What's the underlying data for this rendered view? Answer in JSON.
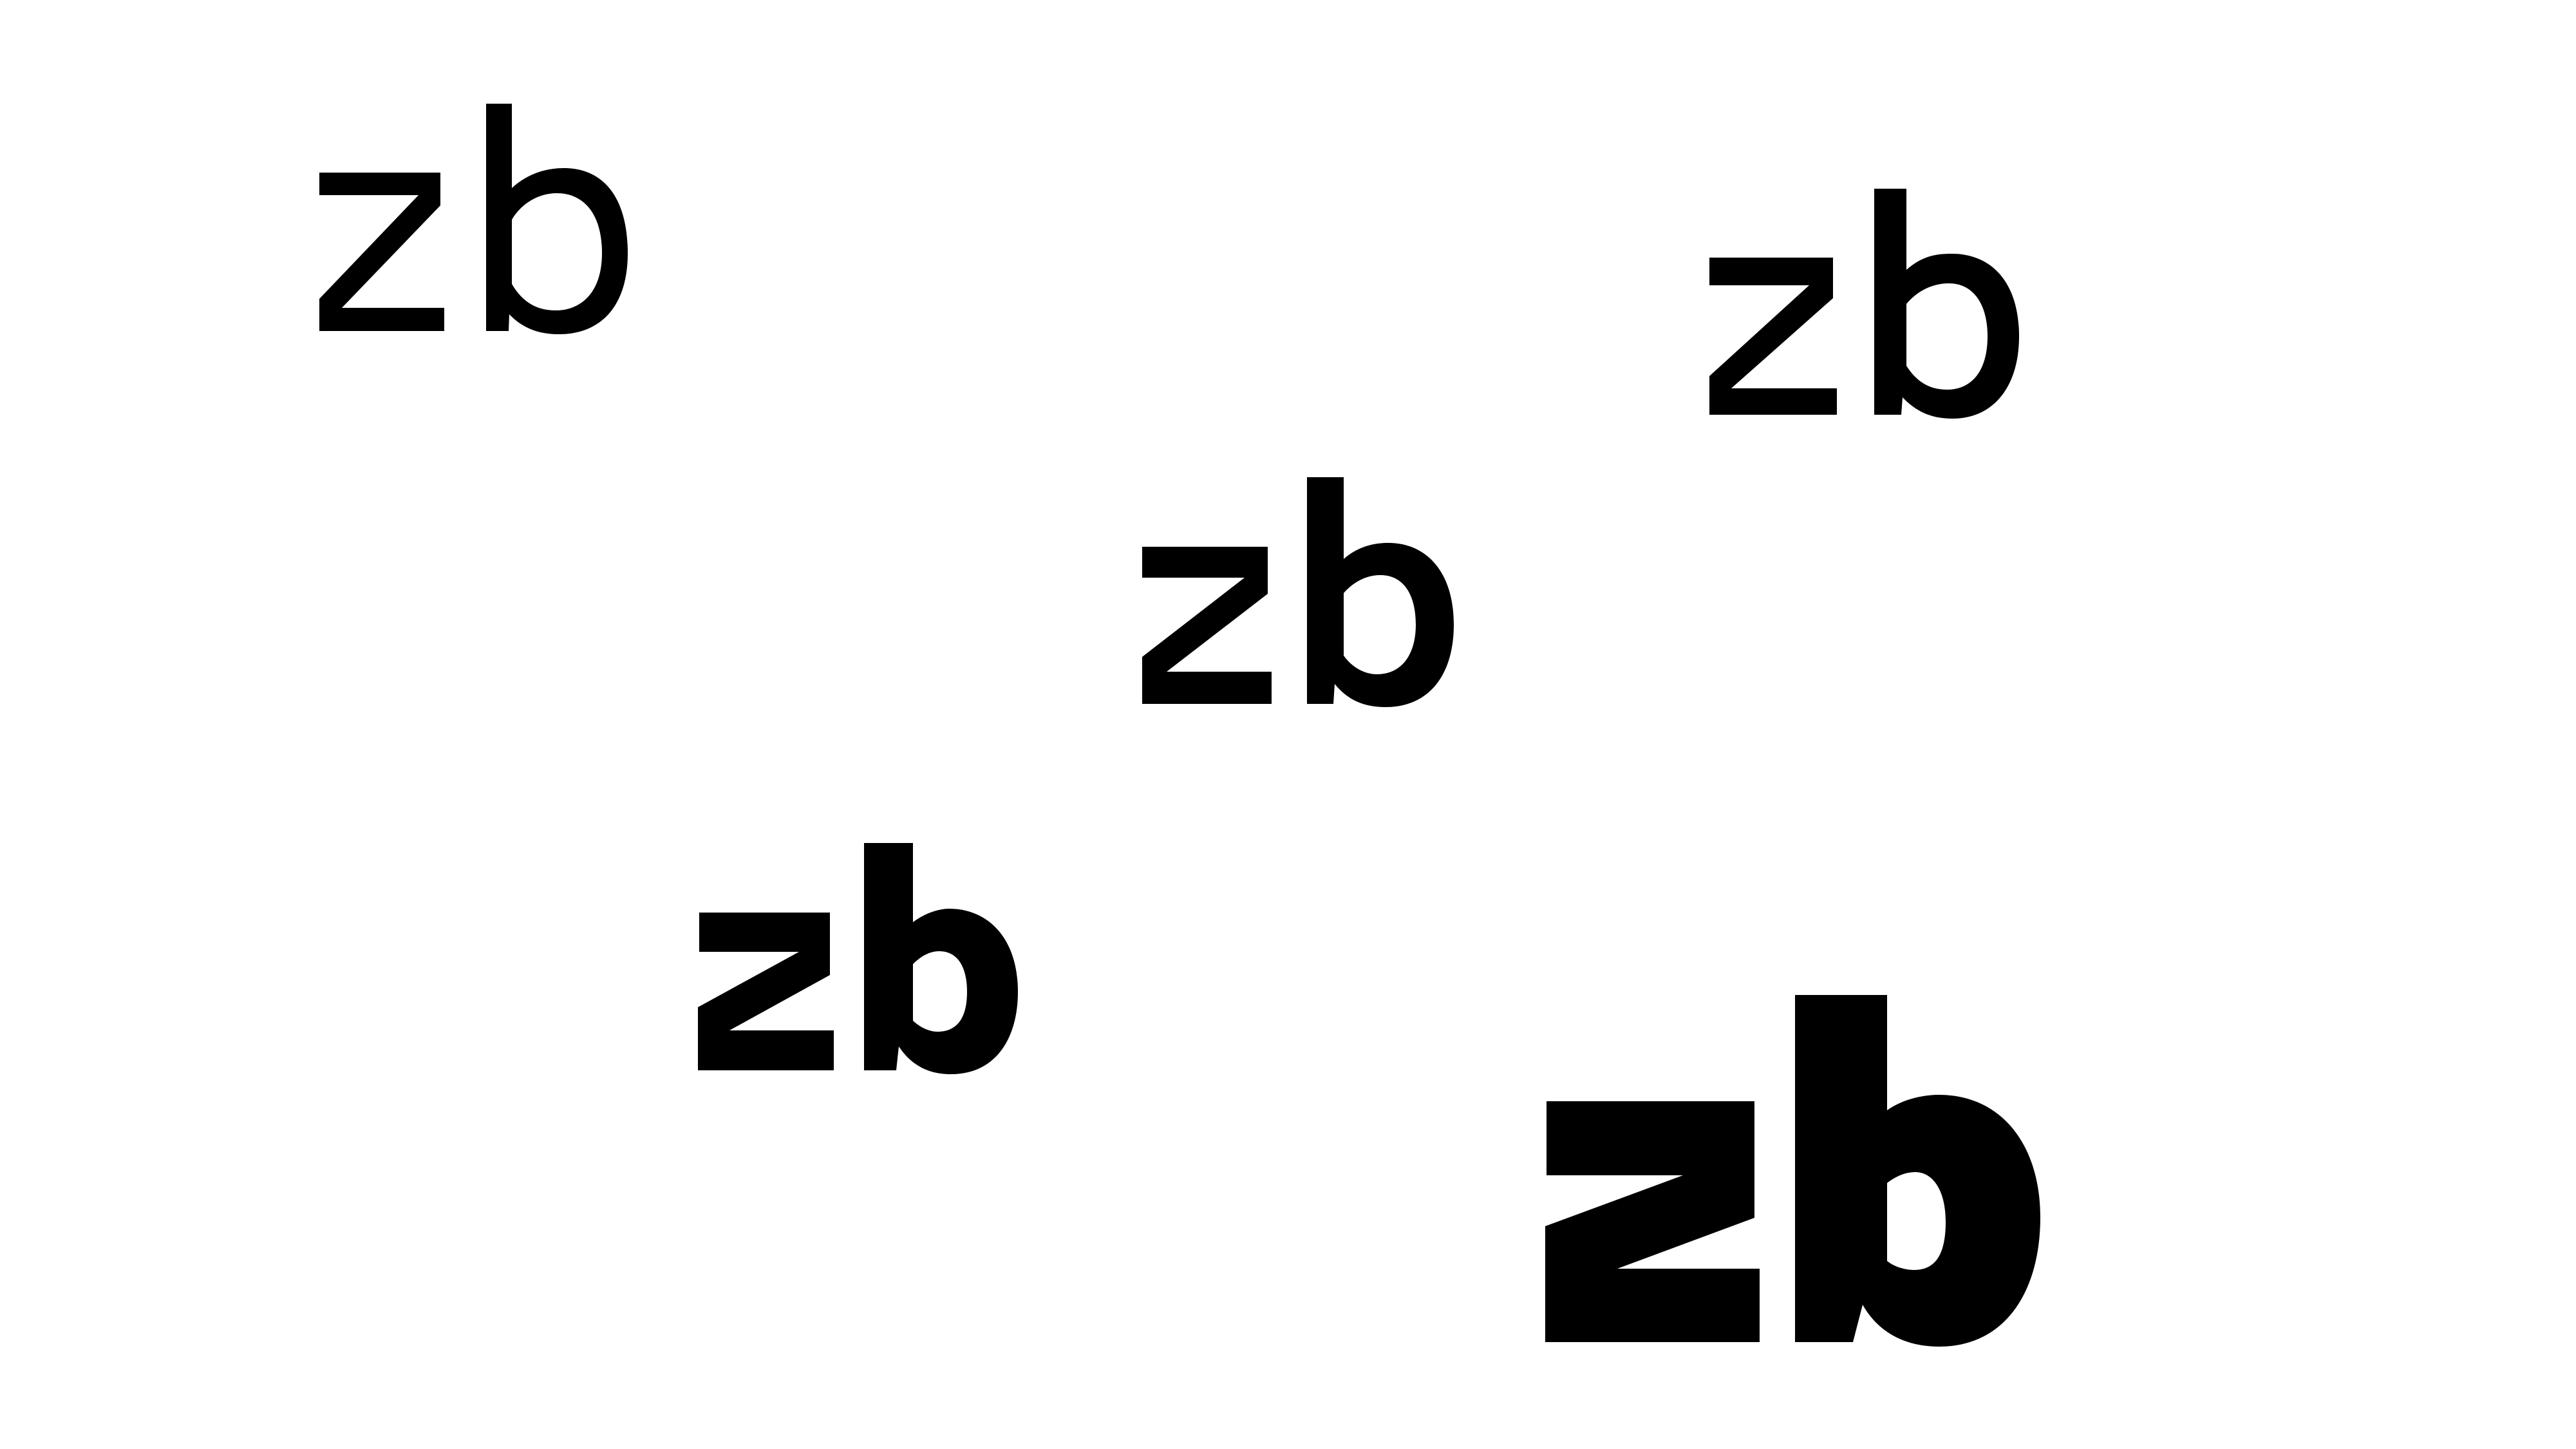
{
  "specimens": [
    {
      "text": "zb",
      "weight_label": "light"
    },
    {
      "text": "zb",
      "weight_label": "regular"
    },
    {
      "text": "zb",
      "weight_label": "medium"
    },
    {
      "text": "zb",
      "weight_label": "bold"
    },
    {
      "text": "zb",
      "weight_label": "black"
    }
  ],
  "colors": {
    "background": "#ffffff",
    "ink": "#000000"
  }
}
